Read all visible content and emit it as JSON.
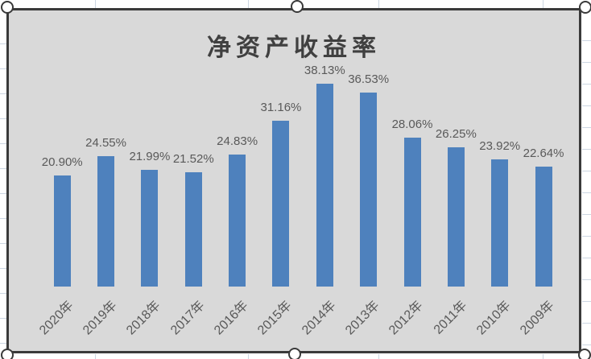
{
  "chart_data": {
    "type": "bar",
    "title": "净资产收益率",
    "categories": [
      "2020年",
      "2019年",
      "2018年",
      "2017年",
      "2016年",
      "2015年",
      "2014年",
      "2013年",
      "2012年",
      "2011年",
      "2010年",
      "2009年"
    ],
    "series": [
      {
        "name": "净资产收益率",
        "values": [
          20.9,
          24.55,
          21.99,
          21.52,
          24.83,
          31.16,
          38.13,
          36.53,
          28.06,
          26.25,
          23.92,
          22.64
        ]
      }
    ],
    "data_labels": [
      "20.90%",
      "24.55%",
      "21.99%",
      "21.52%",
      "24.83%",
      "31.16%",
      "38.13%",
      "36.53%",
      "28.06%",
      "26.25%",
      "23.92%",
      "22.64%"
    ],
    "xlabel": "",
    "ylabel": "",
    "ylim": [
      0,
      42
    ],
    "grid": false,
    "legend": false,
    "y_axis_visible": false,
    "label_rotation_deg": 45,
    "colors": {
      "bar": "#4e81bd",
      "plot_background": "#d9d9d9",
      "chart_border": "#3a3a3a",
      "title_text": "#404040",
      "data_label_text": "#595959",
      "axis_label_text": "#595959",
      "worksheet_gridline": "#ccd6e2"
    }
  },
  "chart_state": {
    "selected": true,
    "selection_handle_count": 6
  }
}
